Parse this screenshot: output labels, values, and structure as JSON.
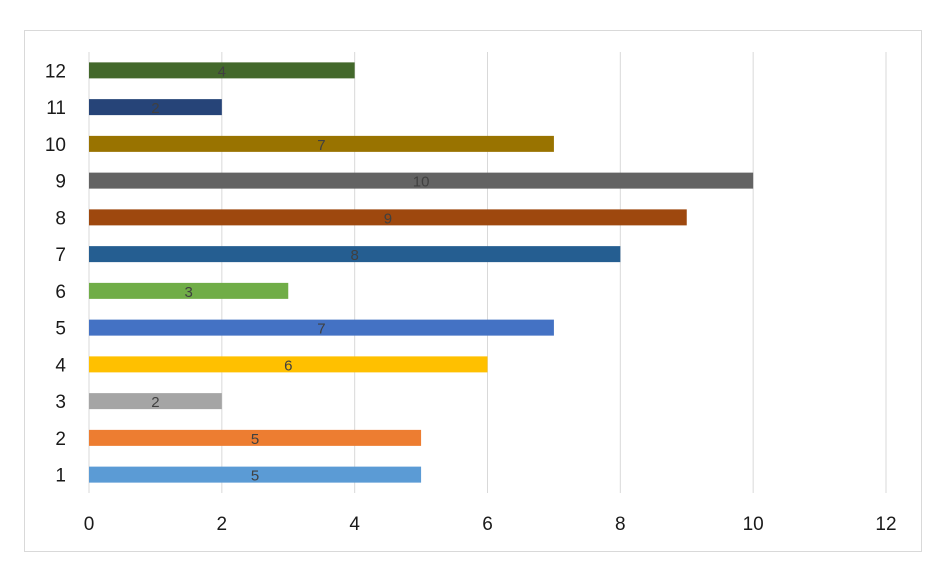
{
  "chart_data": {
    "type": "bar",
    "orientation": "horizontal",
    "title": "",
    "xlabel": "",
    "ylabel": "",
    "categories": [
      "1",
      "2",
      "3",
      "4",
      "5",
      "6",
      "7",
      "8",
      "9",
      "10",
      "11",
      "12"
    ],
    "values": [
      5,
      5,
      2,
      6,
      7,
      3,
      8,
      9,
      10,
      7,
      2,
      4
    ],
    "xlim": [
      0,
      12
    ],
    "xticks": [
      0,
      2,
      4,
      6,
      8,
      10,
      12
    ],
    "grid": "vertical",
    "legend": "none",
    "data_labels": true,
    "colors": [
      "#5B9BD5",
      "#ED7D31",
      "#A5A5A5",
      "#FFC000",
      "#4472C4",
      "#70AD47",
      "#255E91",
      "#9E480E",
      "#636363",
      "#997300",
      "#264478",
      "#43682B"
    ]
  }
}
